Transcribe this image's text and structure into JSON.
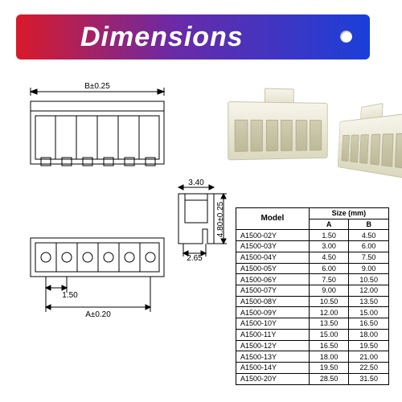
{
  "banner": {
    "title": "Dimensions",
    "gradient_from": "#d91a2a",
    "gradient_mid": "#6a2aa8",
    "gradient_to": "#1a3fd9",
    "title_color": "#ffffff",
    "title_fontsize": 34
  },
  "drawing": {
    "dim_B": "B±0.25",
    "dim_A": "A±0.20",
    "pitch": "1.50",
    "side_width": "3.40",
    "side_width_inner": "2.65",
    "side_height": "4.80±0.25",
    "stroke": "#000000",
    "stroke_width": 1
  },
  "photos": {
    "body_color": "#ecead8",
    "slot_count": 6
  },
  "table": {
    "group_header": "Size (mm)",
    "columns": [
      "Model",
      "A",
      "B"
    ],
    "rows": [
      [
        "A1500-02Y",
        "1.50",
        "4.50"
      ],
      [
        "A1500-03Y",
        "3.00",
        "6.00"
      ],
      [
        "A1500-04Y",
        "4.50",
        "7.50"
      ],
      [
        "A1500-05Y",
        "6.00",
        "9.00"
      ],
      [
        "A1500-06Y",
        "7.50",
        "10.50"
      ],
      [
        "A1500-07Y",
        "9.00",
        "12.00"
      ],
      [
        "A1500-08Y",
        "10.50",
        "13.50"
      ],
      [
        "A1500-09Y",
        "12.00",
        "15.00"
      ],
      [
        "A1500-10Y",
        "13.50",
        "16.50"
      ],
      [
        "A1500-11Y",
        "15.00",
        "18.00"
      ],
      [
        "A1500-12Y",
        "16.50",
        "19.50"
      ],
      [
        "A1500-13Y",
        "18.00",
        "21.00"
      ],
      [
        "A1500-14Y",
        "19.50",
        "22.50"
      ],
      [
        "A1500-20Y",
        "28.50",
        "31.50"
      ]
    ],
    "border_color": "#000000",
    "font_size": 9
  }
}
